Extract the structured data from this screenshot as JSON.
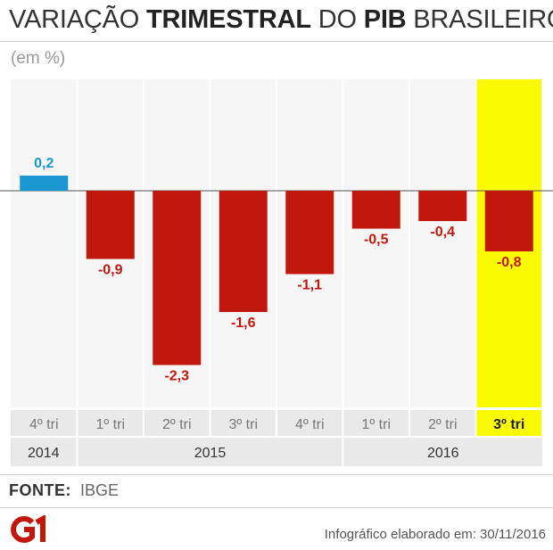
{
  "header": {
    "title_part1": "VARIAÇÃO ",
    "title_part2": "TRIMESTRAL",
    "title_part3": " DO ",
    "title_part4": "PIB",
    "title_part5": " BRASILEIRO",
    "unit": "(em %)"
  },
  "chart_data": {
    "type": "bar",
    "categories": [
      "4º tri",
      "1º tri",
      "2º tri",
      "3º tri",
      "4º tri",
      "1º tri",
      "2º tri",
      "3º tri"
    ],
    "value_labels": [
      "0,2",
      "-0,9",
      "-2,3",
      "-1,6",
      "-1,1",
      "-0,5",
      "-0,4",
      "-0,8"
    ],
    "values": [
      0.2,
      -0.9,
      -2.3,
      -1.6,
      -1.1,
      -0.5,
      -0.4,
      -0.8
    ],
    "highlight_index": 7,
    "year_groups": [
      {
        "label": "2014",
        "span": 1
      },
      {
        "label": "2015",
        "span": 4
      },
      {
        "label": "2016",
        "span": 3
      }
    ],
    "colors": {
      "positive": "#1a97d0",
      "negative": "#c0180c",
      "highlight_bg": "#fbfb00",
      "column_bg": "#f6f6f6",
      "label_band": "#e9e9e9"
    },
    "ylim": [
      -2.8,
      1.5
    ]
  },
  "footer": {
    "source_label": "FONTE:",
    "source_value": "IBGE",
    "logo_text": "G1",
    "credit": "Infográfico elaborado em: 30/11/2016"
  }
}
